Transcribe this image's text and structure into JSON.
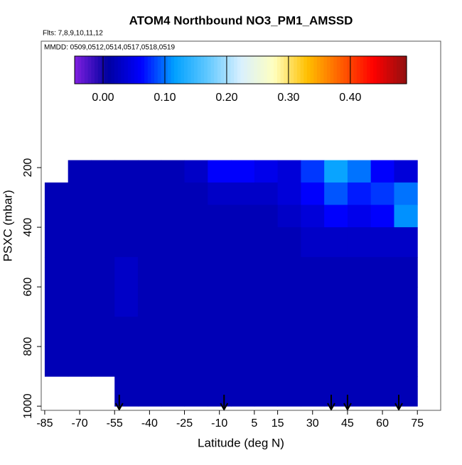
{
  "chart_data": {
    "type": "heatmap",
    "title": "ATOM4 Northbound NO3_PM1_AMSSD",
    "flights_note": "Flts: 7,8,9,10,11,12",
    "dates_note": "MMDD: 0509,0512,0514,0517,0518,0519",
    "x_label": "Latitude (deg N)",
    "y_label": "PSXC (mbar)",
    "xlim": [
      -86.5,
      85
    ],
    "ylim": [
      1014,
      -224
    ],
    "xticks": [
      -85,
      -70,
      -55,
      -40,
      -25,
      -10,
      5,
      15,
      30,
      45,
      60,
      75
    ],
    "yticks": [
      200,
      400,
      600,
      800,
      1000
    ],
    "x_edges": [
      -85,
      -75,
      -65,
      -55,
      -45,
      -35,
      -25,
      -15,
      -5,
      5,
      15,
      25,
      35,
      45,
      55,
      65,
      75
    ],
    "y_edges": [
      175,
      250,
      325,
      400,
      500,
      600,
      700,
      800,
      900,
      1000
    ],
    "values": [
      [
        null,
        0.02,
        0.02,
        0.02,
        0.02,
        0.02,
        0.03,
        0.06,
        0.06,
        0.05,
        0.04,
        0.08,
        0.12,
        0.1,
        0.06,
        0.04
      ],
      [
        0.02,
        0.02,
        0.02,
        0.02,
        0.02,
        0.02,
        0.02,
        0.03,
        0.03,
        0.03,
        0.04,
        0.06,
        0.09,
        0.07,
        0.08,
        0.1
      ],
      [
        0.02,
        0.02,
        0.02,
        0.02,
        0.02,
        0.02,
        0.02,
        0.02,
        0.02,
        0.02,
        0.03,
        0.04,
        0.06,
        0.05,
        0.06,
        0.11
      ],
      [
        0.02,
        0.02,
        0.02,
        0.02,
        0.02,
        0.02,
        0.02,
        0.02,
        0.02,
        0.02,
        0.02,
        0.03,
        0.03,
        0.03,
        0.03,
        0.03
      ],
      [
        0.02,
        0.02,
        0.02,
        0.03,
        0.02,
        0.02,
        0.02,
        0.02,
        0.02,
        0.02,
        0.02,
        0.02,
        0.02,
        0.02,
        0.02,
        0.02
      ],
      [
        0.02,
        0.02,
        0.02,
        0.03,
        0.02,
        0.02,
        0.02,
        0.02,
        0.02,
        0.02,
        0.02,
        0.02,
        0.02,
        0.02,
        0.02,
        0.02
      ],
      [
        0.02,
        0.02,
        0.02,
        0.02,
        0.02,
        0.02,
        0.02,
        0.02,
        0.02,
        0.02,
        0.02,
        0.02,
        0.02,
        0.02,
        0.02,
        0.02
      ],
      [
        0.02,
        0.02,
        0.02,
        0.02,
        0.02,
        0.02,
        0.02,
        0.02,
        0.02,
        0.02,
        0.02,
        0.02,
        0.02,
        0.02,
        0.02,
        0.02
      ],
      [
        null,
        null,
        null,
        0.02,
        0.02,
        0.02,
        0.02,
        0.02,
        0.02,
        0.02,
        0.02,
        0.02,
        0.02,
        0.02,
        0.02,
        0.02
      ]
    ],
    "flight_markers": [
      -53,
      -8,
      38,
      45,
      67
    ],
    "colorbar": {
      "clim": [
        -0.046,
        0.491
      ],
      "ticks": [
        {
          "value": 0,
          "label": "0.00"
        },
        {
          "value": 0.1,
          "label": "0.10"
        },
        {
          "value": 0.2,
          "label": "0.20"
        },
        {
          "value": 0.3,
          "label": "0.30"
        },
        {
          "value": 0.4,
          "label": "0.40"
        }
      ],
      "colors": [
        "#8020e0",
        "#0000a0",
        "#0000ff",
        "#00a0ff",
        "#60c8ff",
        "#d8f0ff",
        "#ffffc0",
        "#ffc000",
        "#ff6000",
        "#ff0000",
        "#901010"
      ]
    }
  }
}
